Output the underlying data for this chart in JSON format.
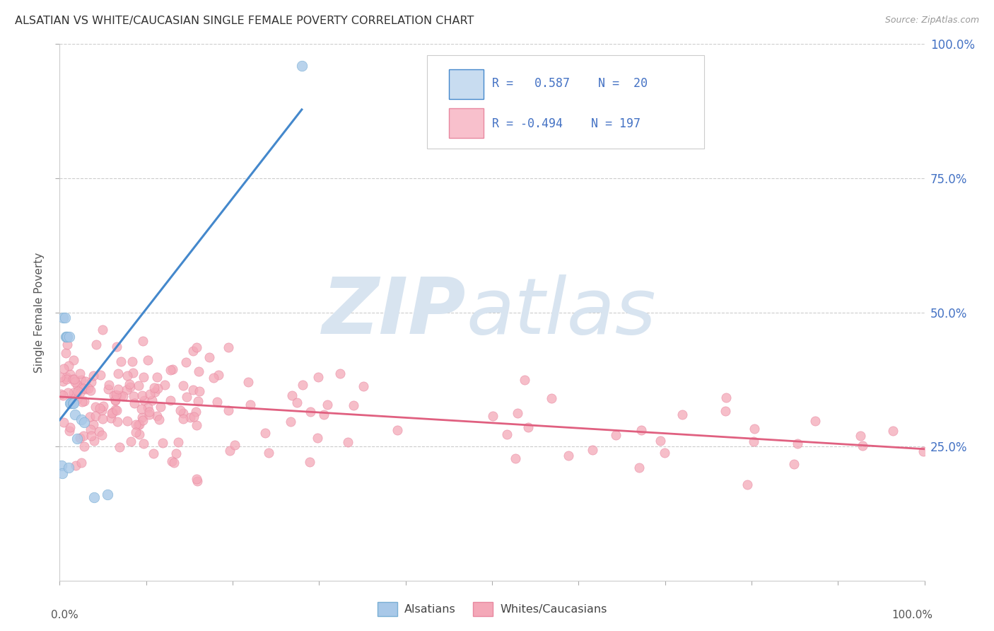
{
  "title": "ALSATIAN VS WHITE/CAUCASIAN SINGLE FEMALE POVERTY CORRELATION CHART",
  "source": "Source: ZipAtlas.com",
  "ylabel": "Single Female Poverty",
  "legend_label1": "Alsatians",
  "legend_label2": "Whites/Caucasians",
  "R_alsatian": 0.587,
  "N_alsatian": 20,
  "R_white": -0.494,
  "N_white": 197,
  "color_alsatian": "#a8c8e8",
  "color_alsatian_edge": "#7aafd4",
  "color_alsatian_line": "#4488cc",
  "color_white": "#f4a8b8",
  "color_white_edge": "#e888a0",
  "color_white_line": "#e06080",
  "color_legend_box_alsatian": "#c8dcf0",
  "color_legend_box_white": "#f8c0cc",
  "watermark_zip": "ZIP",
  "watermark_atlas": "atlas",
  "watermark_color": "#d8e4f0",
  "background_color": "#ffffff",
  "grid_color": "#cccccc",
  "alsatian_x": [
    0.002,
    0.003,
    0.004,
    0.006,
    0.007,
    0.008,
    0.009,
    0.01,
    0.011,
    0.012,
    0.013,
    0.015,
    0.016,
    0.018,
    0.02,
    0.025,
    0.028,
    0.04,
    0.055,
    0.28
  ],
  "alsatian_y": [
    0.215,
    0.2,
    0.49,
    0.49,
    0.455,
    0.455,
    0.455,
    0.21,
    0.455,
    0.33,
    0.33,
    0.33,
    0.33,
    0.31,
    0.265,
    0.3,
    0.295,
    0.155,
    0.16,
    0.96
  ],
  "xlim": [
    0,
    1.0
  ],
  "ylim": [
    0,
    1.0
  ],
  "ytick_vals": [
    0.25,
    0.5,
    0.75,
    1.0
  ],
  "ytick_labels": [
    "25.0%",
    "50.0%",
    "75.0%",
    "100.0%"
  ],
  "fig_width": 14.06,
  "fig_height": 8.92,
  "dpi": 100
}
